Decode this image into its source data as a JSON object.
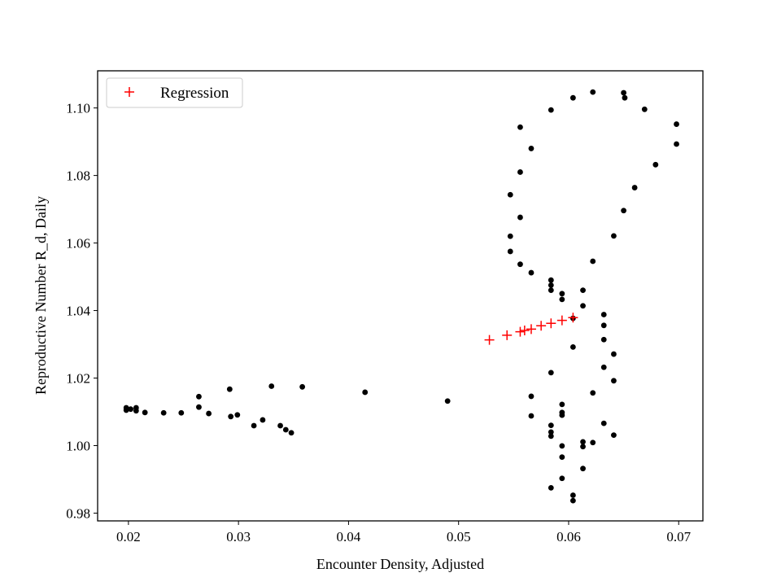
{
  "chart_data": {
    "type": "scatter",
    "xlabel": "Encounter Density, Adjusted",
    "ylabel": "Reproductive Number R_d, Daily",
    "xlim": [
      0.0172,
      0.0722
    ],
    "ylim": [
      0.9777,
      1.111
    ],
    "xticks": [
      0.02,
      0.03,
      0.04,
      0.05,
      0.06,
      0.07
    ],
    "xtick_labels": [
      "0.02",
      "0.03",
      "0.04",
      "0.05",
      "0.06",
      "0.07"
    ],
    "yticks": [
      0.98,
      1.0,
      1.02,
      1.04,
      1.06,
      1.08,
      1.1
    ],
    "ytick_labels": [
      "0.98",
      "1.00",
      "1.02",
      "1.04",
      "1.06",
      "1.08",
      "1.10"
    ],
    "grid": false,
    "legend": {
      "placement": "top-left",
      "entries": [
        "Regression"
      ]
    },
    "colors": {
      "observations": "#000000",
      "regression": "#ff0000"
    },
    "series": [
      {
        "marker": "dot",
        "points": [
          [
            0.0198,
            1.0112
          ],
          [
            0.0198,
            1.0105
          ],
          [
            0.0202,
            1.0108
          ],
          [
            0.0207,
            1.0112
          ],
          [
            0.0207,
            1.0103
          ],
          [
            0.0215,
            1.0098
          ],
          [
            0.0232,
            1.0097
          ],
          [
            0.0248,
            1.0097
          ],
          [
            0.0264,
            1.0145
          ],
          [
            0.0264,
            1.0114
          ],
          [
            0.0273,
            1.0095
          ],
          [
            0.0292,
            1.0167
          ],
          [
            0.0293,
            1.0086
          ],
          [
            0.0299,
            1.0091
          ],
          [
            0.0314,
            1.0059
          ],
          [
            0.0322,
            1.0076
          ],
          [
            0.033,
            1.0176
          ],
          [
            0.0338,
            1.0059
          ],
          [
            0.0343,
            1.0047
          ],
          [
            0.0348,
            1.0038
          ],
          [
            0.0358,
            1.0174
          ],
          [
            0.0415,
            1.0158
          ],
          [
            0.049,
            1.0132
          ],
          [
            0.0556,
            1.0943
          ],
          [
            0.0584,
            1.0994
          ],
          [
            0.0604,
            1.103
          ],
          [
            0.0622,
            1.1047
          ],
          [
            0.065,
            1.1045
          ],
          [
            0.0651,
            1.103
          ],
          [
            0.0669,
            1.0996
          ],
          [
            0.0698,
            1.0952
          ],
          [
            0.0698,
            1.0893
          ],
          [
            0.0679,
            1.0832
          ],
          [
            0.066,
            1.0764
          ],
          [
            0.065,
            1.0696
          ],
          [
            0.0641,
            1.0621
          ],
          [
            0.0622,
            1.0546
          ],
          [
            0.0566,
            1.088
          ],
          [
            0.0556,
            1.081
          ],
          [
            0.0547,
            1.0743
          ],
          [
            0.0556,
            1.0676
          ],
          [
            0.0547,
            1.062
          ],
          [
            0.0547,
            1.0575
          ],
          [
            0.0556,
            1.0537
          ],
          [
            0.0566,
            1.0512
          ],
          [
            0.0584,
            1.049
          ],
          [
            0.0584,
            1.0475
          ],
          [
            0.0584,
            1.046
          ],
          [
            0.0594,
            1.045
          ],
          [
            0.0594,
            1.0433
          ],
          [
            0.0613,
            1.046
          ],
          [
            0.0613,
            1.0414
          ],
          [
            0.0604,
            1.0377
          ],
          [
            0.0632,
            1.0388
          ],
          [
            0.0632,
            1.0356
          ],
          [
            0.0632,
            1.0314
          ],
          [
            0.0641,
            1.0271
          ],
          [
            0.0632,
            1.0232
          ],
          [
            0.0641,
            1.0192
          ],
          [
            0.0622,
            1.0156
          ],
          [
            0.0604,
            1.0292
          ],
          [
            0.0584,
            1.0216
          ],
          [
            0.0566,
            1.0146
          ],
          [
            0.0594,
            1.0122
          ],
          [
            0.0594,
            1.0098
          ],
          [
            0.0594,
            1.009
          ],
          [
            0.0566,
            1.0088
          ],
          [
            0.0584,
            1.006
          ],
          [
            0.0584,
            1.004
          ],
          [
            0.0584,
            1.0028
          ],
          [
            0.0632,
            1.0066
          ],
          [
            0.0641,
            1.0031
          ],
          [
            0.0613,
            1.0011
          ],
          [
            0.0622,
            1.0009
          ],
          [
            0.0594,
            0.9999
          ],
          [
            0.0613,
            0.9997
          ],
          [
            0.0594,
            0.9966
          ],
          [
            0.0613,
            0.9932
          ],
          [
            0.0594,
            0.9903
          ],
          [
            0.0584,
            0.9875
          ],
          [
            0.0604,
            0.9853
          ],
          [
            0.0604,
            0.9837
          ]
        ]
      },
      {
        "name": "Regression",
        "marker": "plus",
        "points": [
          [
            0.0528,
            1.0313
          ],
          [
            0.0544,
            1.0327
          ],
          [
            0.0556,
            1.0337
          ],
          [
            0.056,
            1.0341
          ],
          [
            0.0566,
            1.0345
          ],
          [
            0.0575,
            1.0355
          ],
          [
            0.0584,
            1.0362
          ],
          [
            0.0594,
            1.0371
          ],
          [
            0.0604,
            1.0379
          ]
        ]
      }
    ]
  }
}
